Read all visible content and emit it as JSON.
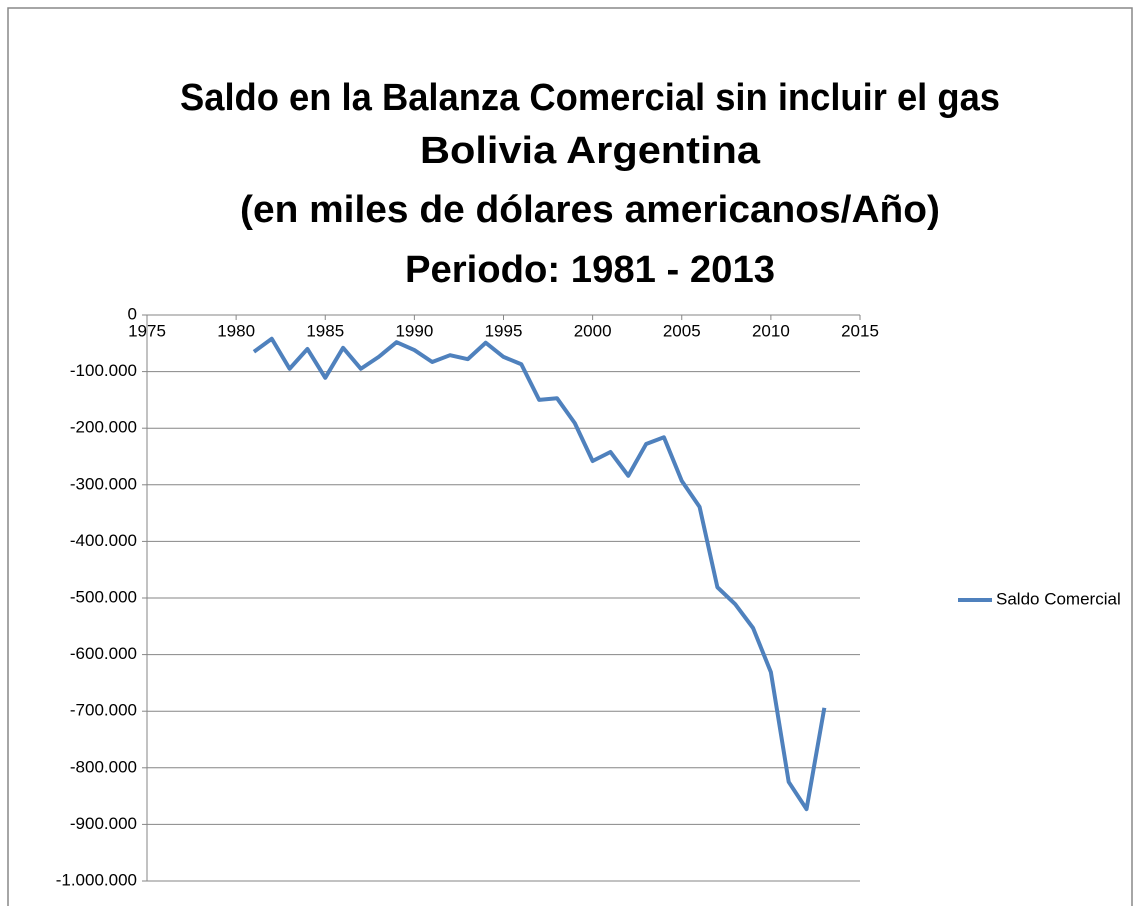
{
  "chart_data": {
    "type": "line",
    "title": [
      "Saldo en la Balanza Comercial sin incluir el gas",
      "Bolivia Argentina",
      "(en miles de dólares americanos/Año)",
      "Periodo: 1981 - 2013"
    ],
    "x": [
      1981,
      1982,
      1983,
      1984,
      1985,
      1986,
      1987,
      1988,
      1989,
      1990,
      1991,
      1992,
      1993,
      1994,
      1995,
      1996,
      1997,
      1998,
      1999,
      2000,
      2001,
      2002,
      2003,
      2004,
      2005,
      2006,
      2007,
      2008,
      2009,
      2010,
      2011,
      2012,
      2013
    ],
    "series": [
      {
        "name": "Saldo Comercial",
        "color": "#4f81bd",
        "values": [
          -65000,
          -42000,
          -95000,
          -60000,
          -111000,
          -58000,
          -95000,
          -74000,
          -48000,
          -62000,
          -83000,
          -71000,
          -78000,
          -49000,
          -74000,
          -87000,
          -150000,
          -147000,
          -191000,
          -258000,
          -242000,
          -284000,
          -228000,
          -216000,
          -293000,
          -339000,
          -481000,
          -511000,
          -553000,
          -631000,
          -825000,
          -873000,
          -694000
        ]
      }
    ],
    "xlim": [
      1975,
      2015
    ],
    "xticks": [
      1975,
      1980,
      1985,
      1990,
      1995,
      2000,
      2005,
      2010,
      2015
    ],
    "ylim": [
      -1000000,
      0
    ],
    "yticks": [
      0,
      {
        "value": -100000,
        "label": "-100.000"
      },
      {
        "value": -200000,
        "label": "-200.000"
      },
      {
        "value": -300000,
        "label": "-300.000"
      },
      {
        "value": -400000,
        "label": "-400.000"
      },
      {
        "value": -500000,
        "label": "-500.000"
      },
      {
        "value": -600000,
        "label": "-600.000"
      },
      {
        "value": -700000,
        "label": "-700.000"
      },
      {
        "value": -800000,
        "label": "-800.000"
      },
      {
        "value": -900000,
        "label": "-900.000"
      },
      {
        "value": -1000000,
        "label": "-1.000.000"
      }
    ],
    "grid": true,
    "legend": "right"
  }
}
